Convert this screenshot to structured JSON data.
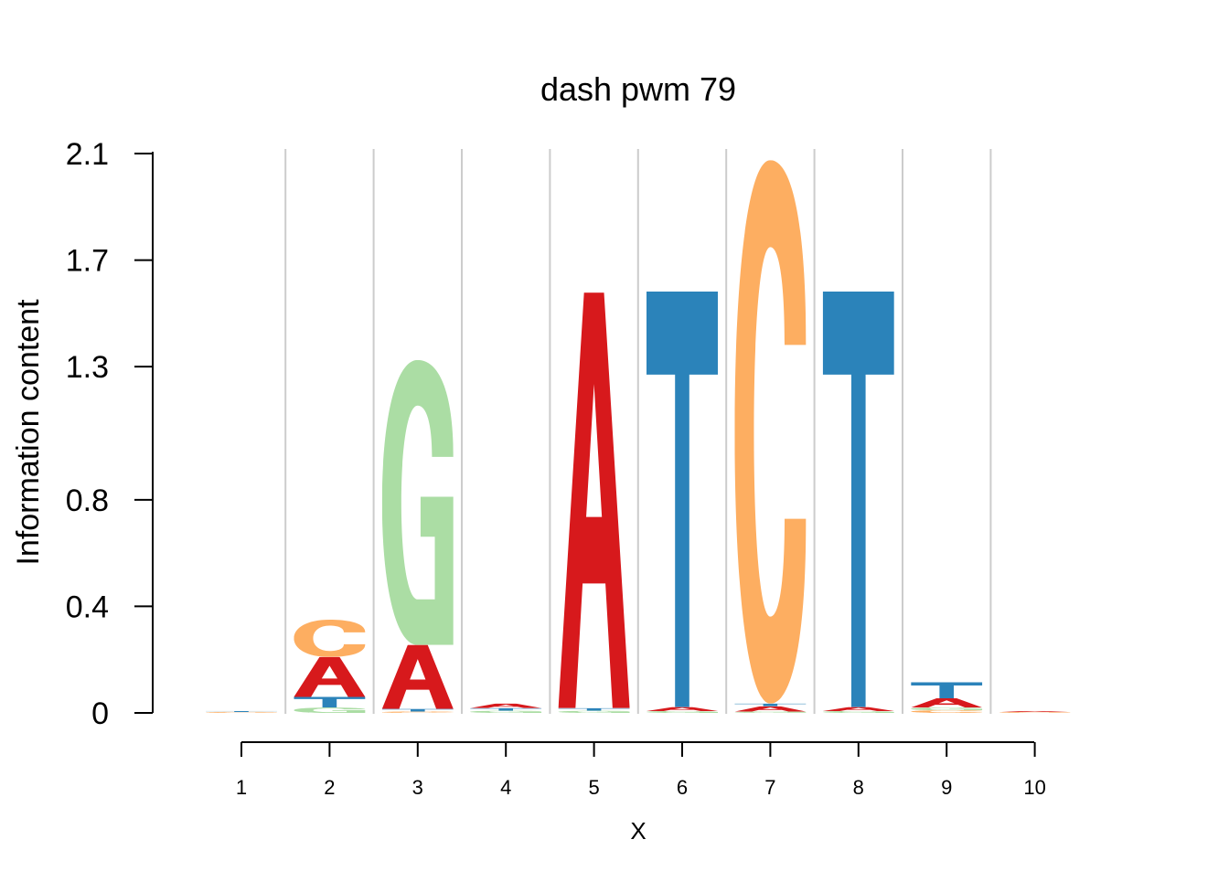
{
  "colors": {
    "A": "#d7191c",
    "C": "#fdae61",
    "G": "#abdda4",
    "T": "#2b83ba",
    "grid": "#cccccc",
    "axis": "#000000"
  },
  "chart_data": {
    "type": "sequence-logo",
    "title": "dash pwm 79",
    "xlabel": "X",
    "ylabel": "Information content",
    "ylim": [
      0,
      2.1
    ],
    "yticks": [
      "0",
      "0.4",
      "0.8",
      "1.3",
      "1.7",
      "2.1"
    ],
    "xticks": [
      "1",
      "2",
      "3",
      "4",
      "5",
      "6",
      "7",
      "8",
      "9",
      "10"
    ],
    "grid": true,
    "positions": [
      {
        "pos": 1,
        "stack": [
          {
            "letter": "C",
            "bits": 0.003
          },
          {
            "letter": "T",
            "bits": 0.003
          }
        ]
      },
      {
        "pos": 2,
        "stack": [
          {
            "letter": "G",
            "bits": 0.02
          },
          {
            "letter": "T",
            "bits": 0.04
          },
          {
            "letter": "A",
            "bits": 0.15
          },
          {
            "letter": "C",
            "bits": 0.14
          }
        ]
      },
      {
        "pos": 3,
        "stack": [
          {
            "letter": "C",
            "bits": 0.005
          },
          {
            "letter": "T",
            "bits": 0.01
          },
          {
            "letter": "A",
            "bits": 0.24
          },
          {
            "letter": "G",
            "bits": 1.07
          }
        ]
      },
      {
        "pos": 4,
        "stack": [
          {
            "letter": "G",
            "bits": 0.008
          },
          {
            "letter": "T",
            "bits": 0.01
          },
          {
            "letter": "A",
            "bits": 0.017
          }
        ]
      },
      {
        "pos": 5,
        "stack": [
          {
            "letter": "G",
            "bits": 0.008
          },
          {
            "letter": "T",
            "bits": 0.01
          },
          {
            "letter": "A",
            "bits": 1.56
          }
        ]
      },
      {
        "pos": 6,
        "stack": [
          {
            "letter": "G",
            "bits": 0.007
          },
          {
            "letter": "A",
            "bits": 0.015
          },
          {
            "letter": "T",
            "bits": 1.56
          }
        ]
      },
      {
        "pos": 7,
        "stack": [
          {
            "letter": "G",
            "bits": 0.005
          },
          {
            "letter": "A",
            "bits": 0.02
          },
          {
            "letter": "T",
            "bits": 0.01
          },
          {
            "letter": "C",
            "bits": 2.04
          }
        ]
      },
      {
        "pos": 8,
        "stack": [
          {
            "letter": "G",
            "bits": 0.007
          },
          {
            "letter": "A",
            "bits": 0.015
          },
          {
            "letter": "T",
            "bits": 1.56
          }
        ]
      },
      {
        "pos": 9,
        "stack": [
          {
            "letter": "C",
            "bits": 0.01
          },
          {
            "letter": "G",
            "bits": 0.01
          },
          {
            "letter": "A",
            "bits": 0.035
          },
          {
            "letter": "T",
            "bits": 0.06
          }
        ]
      },
      {
        "pos": 10,
        "stack": [
          {
            "letter": "C",
            "bits": 0.003
          },
          {
            "letter": "A",
            "bits": 0.003
          }
        ]
      }
    ]
  }
}
